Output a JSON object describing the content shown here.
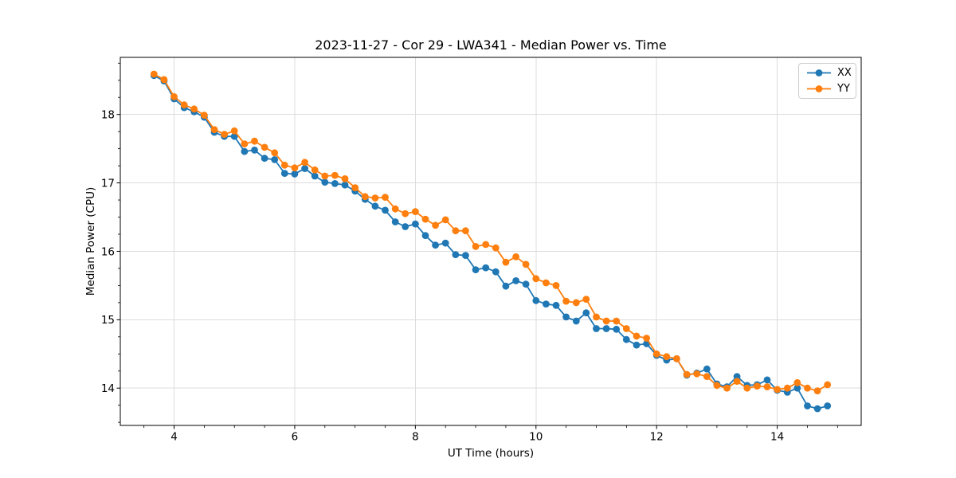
{
  "chart_data": {
    "type": "line",
    "title": "2023-11-27 - Cor 29 - LWA341 - Median Power vs. Time",
    "xlabel": "UT Time (hours)",
    "ylabel": "Median Power (CPU)",
    "xlim": [
      3.108,
      15.392
    ],
    "ylim": [
      13.455,
      18.835
    ],
    "xticks": [
      4,
      6,
      8,
      10,
      12,
      14
    ],
    "yticks": [
      14,
      15,
      16,
      17,
      18
    ],
    "x_minor_step": 0.5,
    "y_minor_step": 0.25,
    "grid": true,
    "grid_color": "#dcdcdc",
    "legend_position": "upper right",
    "x": [
      3.667,
      3.833,
      4.0,
      4.167,
      4.333,
      4.5,
      4.667,
      4.833,
      5.0,
      5.167,
      5.333,
      5.5,
      5.667,
      5.833,
      6.0,
      6.167,
      6.333,
      6.5,
      6.667,
      6.833,
      7.0,
      7.167,
      7.333,
      7.5,
      7.667,
      7.833,
      8.0,
      8.167,
      8.333,
      8.5,
      8.667,
      8.833,
      9.0,
      9.167,
      9.333,
      9.5,
      9.667,
      9.833,
      10.0,
      10.167,
      10.333,
      10.5,
      10.667,
      10.833,
      11.0,
      11.167,
      11.333,
      11.5,
      11.667,
      11.833,
      12.0,
      12.167,
      12.333,
      12.5,
      12.667,
      12.833,
      13.0,
      13.167,
      13.333,
      13.5,
      13.667,
      13.833,
      14.0,
      14.167,
      14.333,
      14.5,
      14.667,
      14.833
    ],
    "series": [
      {
        "name": "XX",
        "color": "#1f77b4",
        "values": [
          18.57,
          18.49,
          18.23,
          18.1,
          18.04,
          17.96,
          17.74,
          17.68,
          17.68,
          17.46,
          17.48,
          17.36,
          17.34,
          17.14,
          17.13,
          17.21,
          17.1,
          17.01,
          16.99,
          16.97,
          16.88,
          16.76,
          16.66,
          16.6,
          16.43,
          16.36,
          16.4,
          16.23,
          16.09,
          16.12,
          15.95,
          15.94,
          15.73,
          15.76,
          15.7,
          15.49,
          15.57,
          15.52,
          15.28,
          15.23,
          15.21,
          15.04,
          14.98,
          15.1,
          14.87,
          14.87,
          14.86,
          14.71,
          14.63,
          14.65,
          14.48,
          14.41,
          14.43,
          14.19,
          14.22,
          14.28,
          14.06,
          14.02,
          14.17,
          14.04,
          14.05,
          14.12,
          13.97,
          13.94,
          14.0,
          13.74,
          13.7,
          13.74
        ]
      },
      {
        "name": "YY",
        "color": "#ff7f0e",
        "values": [
          18.59,
          18.51,
          18.26,
          18.14,
          18.08,
          17.99,
          17.78,
          17.71,
          17.76,
          17.57,
          17.61,
          17.52,
          17.44,
          17.26,
          17.22,
          17.3,
          17.19,
          17.1,
          17.11,
          17.06,
          16.93,
          16.8,
          16.78,
          16.79,
          16.62,
          16.55,
          16.58,
          16.47,
          16.38,
          16.46,
          16.3,
          16.3,
          16.07,
          16.1,
          16.05,
          15.84,
          15.92,
          15.81,
          15.6,
          15.54,
          15.5,
          15.27,
          15.25,
          15.3,
          15.04,
          14.98,
          14.98,
          14.87,
          14.76,
          14.73,
          14.5,
          14.46,
          14.43,
          14.2,
          14.21,
          14.17,
          14.04,
          14.0,
          14.1,
          14.0,
          14.03,
          14.02,
          13.98,
          14.0,
          14.08,
          14.0,
          13.96,
          14.05
        ]
      }
    ]
  }
}
